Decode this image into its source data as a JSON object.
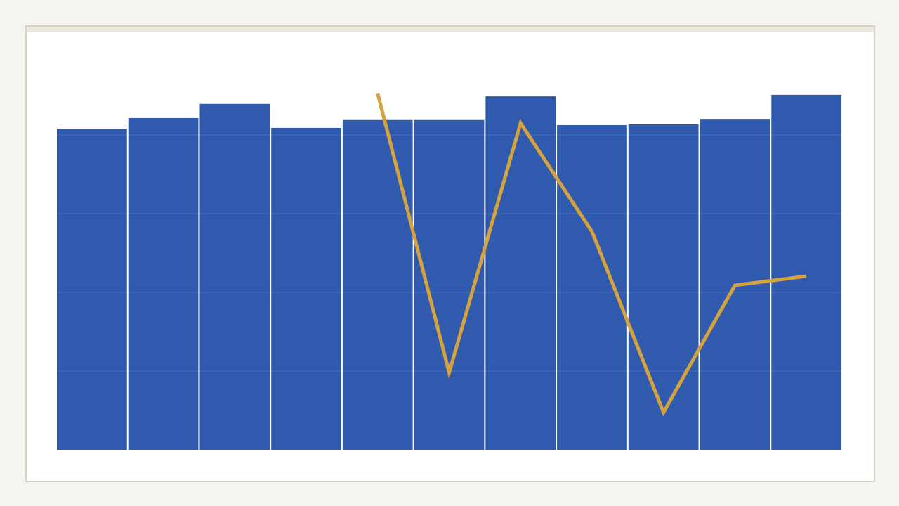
{
  "chart_data": {
    "type": "bar+line",
    "title": "",
    "xlabel": "",
    "ylabel": "",
    "ylim": [
      0,
      100
    ],
    "yticks": [
      0,
      20,
      40,
      60,
      80,
      100
    ],
    "grid": true,
    "categories_count": 11,
    "series": [
      {
        "type": "bar",
        "color": "#2f5aae",
        "values": [
          81.6,
          84.3,
          87.9,
          81.8,
          83.8,
          83.8,
          89.8,
          82.5,
          82.7,
          83.9,
          90.2
        ]
      },
      {
        "type": "line",
        "color": "#d6a23d",
        "values": [
          null,
          null,
          null,
          null,
          90.5,
          19.6,
          83.0,
          55.4,
          9.5,
          41.8,
          44.1
        ]
      }
    ]
  }
}
